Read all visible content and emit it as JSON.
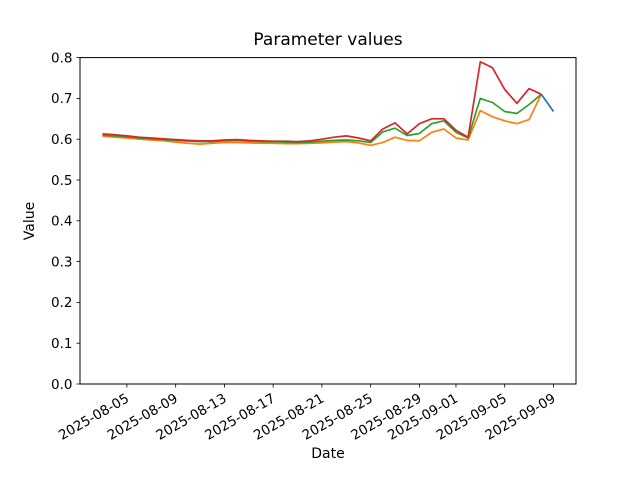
{
  "figure": {
    "title": "Parameter values",
    "xlabel": "Date",
    "ylabel": "Value",
    "background_color": "#ffffff",
    "spine_color": "#000000"
  },
  "chart_data": {
    "type": "line",
    "title": "Parameter values",
    "xlabel": "Date",
    "ylabel": "Value",
    "ylim": [
      0.0,
      0.8
    ],
    "ytick_step": 0.1,
    "grid": false,
    "legend": "none",
    "xtick_rotation_deg": 30,
    "xtick_labels": [
      "2025-08-05",
      "2025-08-09",
      "2025-08-13",
      "2025-08-17",
      "2025-08-21",
      "2025-08-25",
      "2025-08-29",
      "2025-09-01",
      "2025-09-05",
      "2025-09-09"
    ],
    "x_dates": [
      "2025-08-03",
      "2025-08-04",
      "2025-08-05",
      "2025-08-06",
      "2025-08-07",
      "2025-08-08",
      "2025-08-09",
      "2025-08-10",
      "2025-08-11",
      "2025-08-12",
      "2025-08-13",
      "2025-08-14",
      "2025-08-15",
      "2025-08-16",
      "2025-08-17",
      "2025-08-18",
      "2025-08-19",
      "2025-08-20",
      "2025-08-21",
      "2025-08-22",
      "2025-08-23",
      "2025-08-24",
      "2025-08-25",
      "2025-08-26",
      "2025-08-27",
      "2025-08-28",
      "2025-08-29",
      "2025-08-30",
      "2025-08-31",
      "2025-09-01",
      "2025-09-02",
      "2025-09-03",
      "2025-09-04",
      "2025-09-05",
      "2025-09-06",
      "2025-09-07",
      "2025-09-08",
      "2025-09-09"
    ],
    "series": [
      {
        "name": "series-orange",
        "color": "#ff7f0e",
        "values": [
          0.607,
          0.605,
          0.603,
          0.6,
          0.598,
          0.596,
          0.593,
          0.59,
          0.588,
          0.59,
          0.592,
          0.592,
          0.591,
          0.59,
          0.59,
          0.589,
          0.589,
          0.59,
          0.591,
          0.593,
          0.594,
          0.591,
          0.585,
          0.592,
          0.605,
          0.597,
          0.596,
          0.617,
          0.625,
          0.603,
          0.598,
          0.67,
          0.655,
          0.645,
          0.638,
          0.648,
          0.71,
          null
        ]
      },
      {
        "name": "series-green",
        "color": "#2ca02c",
        "values": [
          0.61,
          0.608,
          0.606,
          0.603,
          0.601,
          0.599,
          0.597,
          0.595,
          0.594,
          0.594,
          0.596,
          0.597,
          0.595,
          0.594,
          0.594,
          0.593,
          0.592,
          0.593,
          0.595,
          0.597,
          0.598,
          0.596,
          0.592,
          0.618,
          0.627,
          0.609,
          0.614,
          0.638,
          0.645,
          0.617,
          0.603,
          0.7,
          0.69,
          0.668,
          0.663,
          0.685,
          0.71,
          null
        ]
      },
      {
        "name": "series-red",
        "color": "#d62728",
        "values": [
          0.613,
          0.611,
          0.608,
          0.605,
          0.603,
          0.601,
          0.599,
          0.597,
          0.596,
          0.596,
          0.598,
          0.599,
          0.597,
          0.596,
          0.595,
          0.595,
          0.594,
          0.596,
          0.6,
          0.605,
          0.608,
          0.603,
          0.596,
          0.625,
          0.64,
          0.613,
          0.638,
          0.65,
          0.65,
          0.622,
          0.605,
          0.79,
          0.775,
          0.722,
          0.688,
          0.724,
          0.71,
          null
        ]
      },
      {
        "name": "series-blue",
        "color": "#1f77b4",
        "values": [
          null,
          null,
          null,
          null,
          null,
          null,
          null,
          null,
          null,
          null,
          null,
          null,
          null,
          null,
          null,
          null,
          null,
          null,
          null,
          null,
          null,
          null,
          null,
          null,
          null,
          null,
          null,
          null,
          null,
          null,
          null,
          null,
          null,
          null,
          null,
          null,
          0.71,
          0.668
        ]
      }
    ]
  }
}
